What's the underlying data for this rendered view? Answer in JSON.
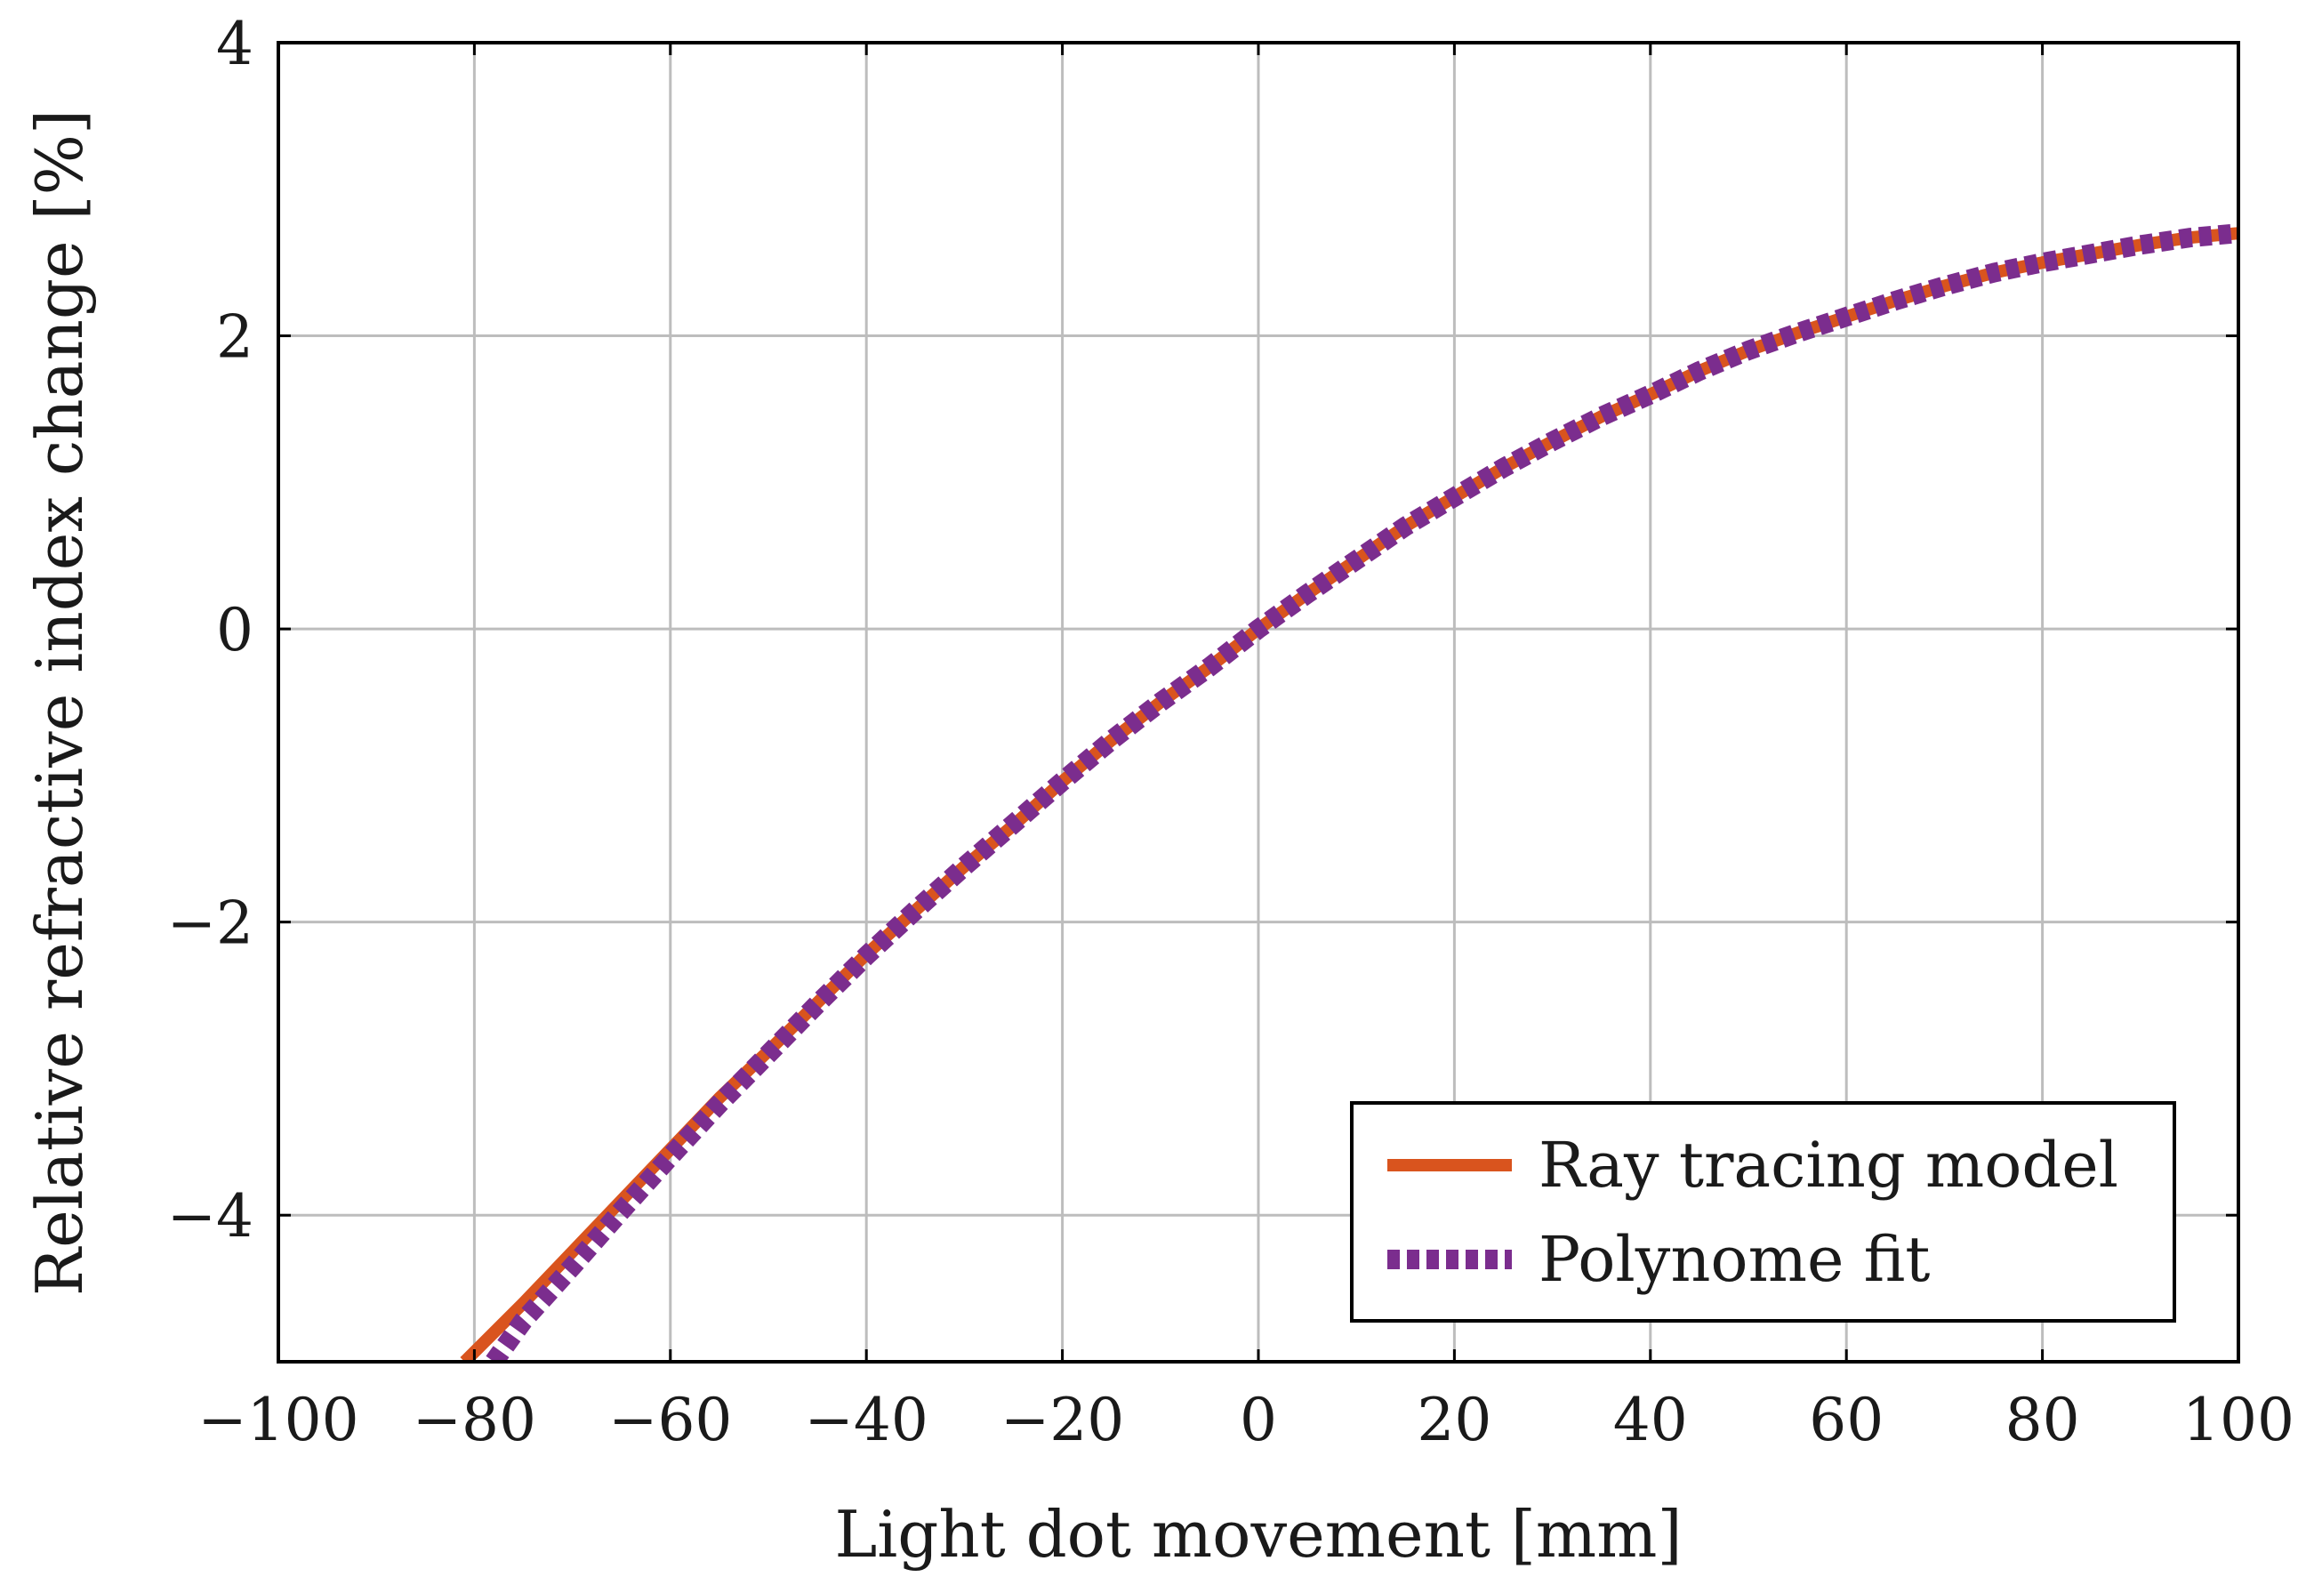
{
  "chart_data": {
    "type": "line",
    "title": "",
    "xlabel": "Light dot movement [mm]",
    "ylabel": "Relative refractive index change [%]",
    "xlim": [
      -100,
      100
    ],
    "ylim": [
      -5,
      4
    ],
    "xticks": [
      -100,
      -80,
      -60,
      -40,
      -20,
      0,
      20,
      40,
      60,
      80,
      100
    ],
    "yticks": [
      -4,
      -2,
      0,
      2,
      4
    ],
    "xtick_labels": [
      "−100",
      "−80",
      "−60",
      "−40",
      "−20",
      "0",
      "20",
      "40",
      "60",
      "80",
      "100"
    ],
    "ytick_labels": [
      "−4",
      "−2",
      "0",
      "2",
      "4"
    ],
    "grid": true,
    "legend_position": "bottom-right",
    "series": [
      {
        "name": "Ray tracing model",
        "color": "#d9541e",
        "style": "solid",
        "x": [
          -81,
          -75,
          -70,
          -65,
          -60,
          -55,
          -50,
          -45,
          -40,
          -35,
          -30,
          -25,
          -20,
          -15,
          -10,
          -5,
          0,
          5,
          10,
          15,
          20,
          25,
          30,
          35,
          40,
          45,
          50,
          55,
          60,
          65,
          70,
          75,
          80,
          85,
          90,
          95,
          100
        ],
        "values": [
          -5.0,
          -4.6,
          -4.25,
          -3.9,
          -3.55,
          -3.2,
          -2.88,
          -2.55,
          -2.22,
          -1.92,
          -1.62,
          -1.34,
          -1.04,
          -0.76,
          -0.5,
          -0.26,
          0.0,
          0.24,
          0.47,
          0.7,
          0.9,
          1.1,
          1.28,
          1.45,
          1.6,
          1.76,
          1.9,
          2.02,
          2.13,
          2.24,
          2.34,
          2.43,
          2.5,
          2.56,
          2.62,
          2.67,
          2.7
        ]
      },
      {
        "name": "Polynome fit",
        "color": "#7b2d8e",
        "style": "dotted",
        "x": [
          -78,
          -75,
          -70,
          -65,
          -60,
          -55,
          -50,
          -45,
          -40,
          -35,
          -30,
          -25,
          -20,
          -15,
          -10,
          -5,
          0,
          5,
          10,
          15,
          20,
          25,
          30,
          35,
          40,
          45,
          50,
          55,
          60,
          65,
          70,
          75,
          80,
          85,
          90,
          95,
          100
        ],
        "values": [
          -5.0,
          -4.72,
          -4.35,
          -3.97,
          -3.6,
          -3.24,
          -2.9,
          -2.56,
          -2.23,
          -1.92,
          -1.62,
          -1.33,
          -1.04,
          -0.76,
          -0.5,
          -0.26,
          0.0,
          0.24,
          0.47,
          0.7,
          0.9,
          1.1,
          1.28,
          1.45,
          1.6,
          1.76,
          1.9,
          2.02,
          2.13,
          2.24,
          2.34,
          2.43,
          2.5,
          2.56,
          2.62,
          2.67,
          2.7
        ]
      }
    ]
  }
}
